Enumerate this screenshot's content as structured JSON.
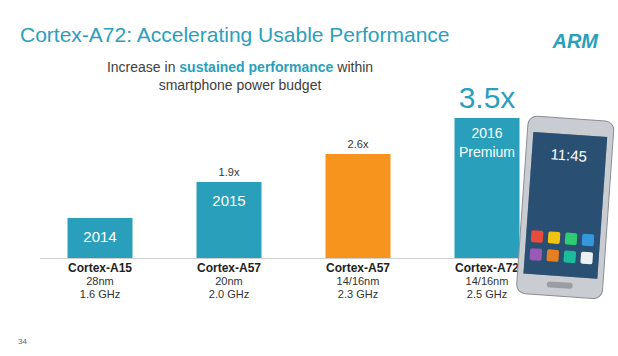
{
  "chart_data": {
    "type": "bar",
    "title": "Cortex-A72: Accelerating Usable Performance",
    "subtitle": [
      "Increase in sustained performance within",
      "smartphone power budget"
    ],
    "subtitle_emphasis": "sustained performance",
    "categories": [
      "Cortex-A15",
      "Cortex-A57",
      "Cortex-A57",
      "Cortex-A72"
    ],
    "process": [
      "28nm",
      "20nm",
      "14/16nm",
      "14/16nm"
    ],
    "clock": [
      "1.6 GHz",
      "2.0 GHz",
      "2.3 GHz",
      "2.5 GHz"
    ],
    "values": [
      1,
      1.9,
      2.6,
      3.5
    ],
    "value_labels": [
      null,
      "1.9x",
      "2.6x",
      "3.5x"
    ],
    "colors": [
      "#2a9fbc",
      "#2a9fbc",
      "#f7941d",
      "#2a9fbc"
    ],
    "bar_labels": [
      [
        "2014"
      ],
      [
        "2015"
      ],
      null,
      [
        "2016",
        "Premium"
      ]
    ],
    "ylim": [
      0,
      3.5
    ],
    "tick_labels": false,
    "data_labels": true,
    "page_number": "34",
    "logo": "ARM",
    "phone_time": "11:45"
  }
}
